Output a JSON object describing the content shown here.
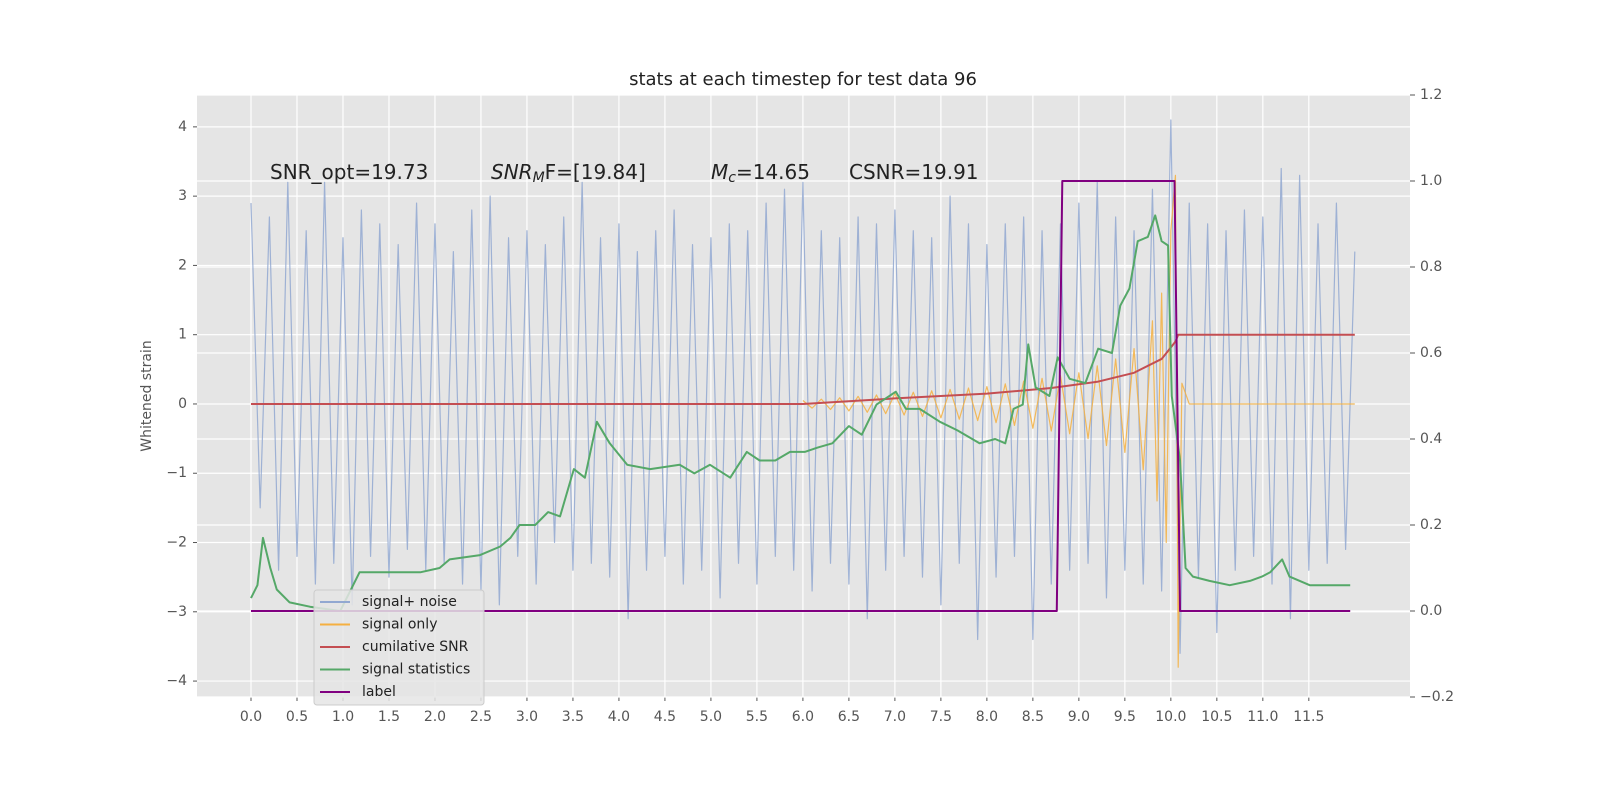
{
  "chart_data": {
    "type": "line",
    "title": "stats at each timestep for test data 96",
    "ylabel": "Whitened strain",
    "xlim": [
      -0.587,
      12.6
    ],
    "ylim": [
      -4.23,
      4.46
    ],
    "y2lim": [
      -0.2,
      1.2
    ],
    "grid": true,
    "legend": "lower left",
    "xticks": [
      {
        "value": 0,
        "label": "0.0"
      },
      0.5,
      {
        "value": 1,
        "label": "1.0"
      },
      1.5,
      {
        "value": 2,
        "label": "2.0"
      },
      2.5,
      {
        "value": 3,
        "label": "3.0"
      },
      3.5,
      {
        "value": 4,
        "label": "4.0"
      },
      4.5,
      {
        "value": 5,
        "label": "5.0"
      },
      5.5,
      {
        "value": 6,
        "label": "6.0"
      },
      6.5,
      {
        "value": 7,
        "label": "7.0"
      },
      7.5,
      {
        "value": 8,
        "label": "8.0"
      },
      8.5,
      {
        "value": 9,
        "label": "9.0"
      },
      9.5,
      {
        "value": 10,
        "label": "10.0"
      },
      10.5,
      {
        "value": 11,
        "label": "11.0"
      },
      11.5
    ],
    "yticks": [
      {
        "value": -4,
        "label": "−4"
      },
      {
        "value": -3,
        "label": "−3"
      },
      {
        "value": -2,
        "label": "−2"
      },
      {
        "value": -1,
        "label": "−1"
      },
      0,
      1,
      2,
      3,
      4
    ],
    "y2ticks": [
      {
        "value": -0.2,
        "label": "−0.2"
      },
      {
        "value": 0,
        "label": "0.0"
      },
      0.2,
      0.4,
      0.6,
      0.8,
      {
        "value": 1,
        "label": "1.0"
      },
      1.2
    ],
    "annotations": [
      {
        "text": "SNR_opt=19.73"
      },
      {
        "text": "SNR",
        "sub": "M",
        "rest": "F=[19.84]"
      },
      {
        "text": "M",
        "sub": "c",
        "rest": "=14.65"
      },
      {
        "text": "CSNR=19.91"
      }
    ],
    "series": [
      {
        "name": "signal+ noise",
        "color": "#92a8d1",
        "x": [
          0.0,
          0.1,
          0.2,
          0.3,
          0.4,
          0.5,
          0.6,
          0.7,
          0.8,
          0.9,
          1.0,
          1.1,
          1.2,
          1.3,
          1.4,
          1.5,
          1.6,
          1.7,
          1.8,
          1.9,
          2.0,
          2.1,
          2.2,
          2.3,
          2.4,
          2.5,
          2.6,
          2.7,
          2.8,
          2.9,
          3.0,
          3.1,
          3.2,
          3.3,
          3.4,
          3.5,
          3.6,
          3.7,
          3.8,
          3.9,
          4.0,
          4.1,
          4.2,
          4.3,
          4.4,
          4.5,
          4.6,
          4.7,
          4.8,
          4.9,
          5.0,
          5.1,
          5.2,
          5.3,
          5.4,
          5.5,
          5.6,
          5.7,
          5.8,
          5.9,
          6.0,
          6.1,
          6.2,
          6.3,
          6.4,
          6.5,
          6.6,
          6.7,
          6.8,
          6.9,
          7.0,
          7.1,
          7.2,
          7.3,
          7.4,
          7.5,
          7.6,
          7.7,
          7.8,
          7.9,
          8.0,
          8.1,
          8.2,
          8.3,
          8.4,
          8.5,
          8.6,
          8.7,
          8.8,
          8.9,
          9.0,
          9.1,
          9.2,
          9.3,
          9.4,
          9.5,
          9.6,
          9.7,
          9.8,
          9.9,
          10.0,
          10.1,
          10.2,
          10.3,
          10.4,
          10.5,
          10.6,
          10.7,
          10.8,
          10.9,
          11.0,
          11.1,
          11.2,
          11.3,
          11.4,
          11.5,
          11.6,
          11.7,
          11.8,
          11.9,
          12.0
        ],
        "values": [
          2.9,
          -1.5,
          2.7,
          -2.4,
          3.2,
          -2.2,
          2.5,
          -2.6,
          3.2,
          -2.3,
          2.4,
          -2.9,
          2.8,
          -2.2,
          2.6,
          -2.5,
          2.3,
          -2.1,
          2.9,
          -2.4,
          2.6,
          -2.3,
          2.2,
          -2.6,
          2.8,
          -2.7,
          3.0,
          -2.9,
          2.4,
          -2.2,
          2.5,
          -2.6,
          2.3,
          -2.0,
          2.7,
          -2.4,
          3.2,
          -2.3,
          2.4,
          -2.5,
          2.6,
          -3.1,
          2.2,
          -2.4,
          2.5,
          -2.2,
          2.8,
          -2.6,
          2.3,
          -2.4,
          2.4,
          -2.8,
          2.6,
          -2.3,
          2.5,
          -2.6,
          2.9,
          -2.2,
          3.1,
          -2.4,
          3.2,
          -2.7,
          2.5,
          -2.3,
          2.4,
          -2.6,
          2.7,
          -3.1,
          2.6,
          -2.4,
          2.8,
          -2.2,
          2.5,
          -2.5,
          2.4,
          -2.9,
          3.0,
          -2.3,
          2.6,
          -3.4,
          2.3,
          -2.5,
          2.6,
          -2.2,
          2.7,
          -3.4,
          2.5,
          -2.6,
          2.6,
          -2.4,
          2.9,
          -2.3,
          3.2,
          -2.8,
          2.7,
          -2.4,
          2.5,
          -2.6,
          3.1,
          -2.7,
          4.1,
          -3.6,
          2.9,
          -2.5,
          2.6,
          -3.3,
          2.5,
          -2.4,
          2.8,
          -2.2,
          2.7,
          -2.6,
          3.4,
          -3.1,
          3.3,
          -2.4,
          2.6,
          -2.3,
          2.9,
          -2.1,
          2.2
        ]
      },
      {
        "name": "signal only",
        "color": "#f5b041",
        "x": [
          6.0,
          6.1,
          6.2,
          6.3,
          6.4,
          6.5,
          6.6,
          6.7,
          6.8,
          6.9,
          7.0,
          7.1,
          7.2,
          7.3,
          7.4,
          7.5,
          7.6,
          7.7,
          7.8,
          7.9,
          8.0,
          8.1,
          8.2,
          8.3,
          8.4,
          8.5,
          8.6,
          8.7,
          8.8,
          8.9,
          9.0,
          9.1,
          9.2,
          9.3,
          9.4,
          9.5,
          9.6,
          9.7,
          9.8,
          9.85,
          9.9,
          9.95,
          10.0,
          10.05,
          10.08,
          10.12,
          10.2,
          12.0
        ],
        "values": [
          0.05,
          -0.06,
          0.07,
          -0.08,
          0.09,
          -0.1,
          0.11,
          -0.12,
          0.13,
          -0.14,
          0.15,
          -0.16,
          0.17,
          -0.18,
          0.19,
          -0.2,
          0.21,
          -0.22,
          0.23,
          -0.24,
          0.25,
          -0.27,
          0.29,
          -0.31,
          0.33,
          -0.35,
          0.37,
          -0.39,
          0.41,
          -0.43,
          0.45,
          -0.5,
          0.55,
          -0.6,
          0.65,
          -0.7,
          0.8,
          -0.95,
          1.2,
          -1.4,
          1.6,
          -2.0,
          2.5,
          3.3,
          -3.8,
          0.3,
          0,
          0
        ]
      },
      {
        "name": "cumilative SNR",
        "color": "#c44e52",
        "x": [
          0.0,
          6.0,
          7.0,
          8.0,
          8.7,
          9.2,
          9.6,
          9.9,
          10.05,
          10.08,
          12.0
        ],
        "values": [
          0,
          0,
          0.08,
          0.15,
          0.23,
          0.32,
          0.45,
          0.65,
          0.9,
          1.0,
          1.0
        ]
      },
      {
        "name": "signal statistics",
        "color": "#55a868",
        "axis": "y2",
        "x": [
          0.0,
          0.07,
          0.13,
          0.21,
          0.28,
          0.42,
          0.64,
          0.97,
          1.18,
          1.4,
          1.84,
          2.05,
          2.16,
          2.49,
          2.71,
          2.82,
          2.92,
          3.09,
          3.23,
          3.36,
          3.51,
          3.63,
          3.76,
          3.9,
          4.09,
          4.34,
          4.66,
          4.82,
          4.99,
          5.21,
          5.39,
          5.53,
          5.7,
          5.86,
          6.02,
          6.16,
          6.32,
          6.5,
          6.64,
          6.8,
          7.01,
          7.12,
          7.27,
          7.49,
          7.68,
          7.92,
          8.09,
          8.2,
          8.29,
          8.39,
          8.45,
          8.53,
          8.68,
          8.77,
          8.9,
          9.07,
          9.21,
          9.36,
          9.45,
          9.55,
          9.64,
          9.75,
          9.83,
          9.9,
          9.97,
          10.01,
          10.1,
          10.16,
          10.24,
          10.42,
          10.64,
          10.86,
          10.99,
          11.08,
          11.21,
          11.29,
          11.51,
          11.95
        ],
        "values": [
          0.03,
          0.06,
          0.17,
          0.1,
          0.05,
          0.02,
          0.01,
          0.0,
          0.09,
          0.09,
          0.09,
          0.1,
          0.12,
          0.13,
          0.15,
          0.17,
          0.2,
          0.2,
          0.23,
          0.22,
          0.33,
          0.31,
          0.44,
          0.39,
          0.34,
          0.33,
          0.34,
          0.32,
          0.34,
          0.31,
          0.37,
          0.35,
          0.35,
          0.37,
          0.37,
          0.38,
          0.39,
          0.43,
          0.41,
          0.48,
          0.51,
          0.47,
          0.47,
          0.44,
          0.42,
          0.39,
          0.4,
          0.39,
          0.47,
          0.48,
          0.62,
          0.52,
          0.5,
          0.59,
          0.54,
          0.53,
          0.61,
          0.6,
          0.71,
          0.75,
          0.86,
          0.87,
          0.92,
          0.86,
          0.85,
          0.5,
          0.35,
          0.1,
          0.08,
          0.07,
          0.06,
          0.07,
          0.08,
          0.09,
          0.12,
          0.08,
          0.06,
          0.06
        ]
      },
      {
        "name": "label",
        "color": "#800080",
        "axis": "y2",
        "x": [
          0.0,
          8.76,
          8.82,
          10.04,
          10.1,
          11.95
        ],
        "values": [
          0,
          0,
          1,
          1,
          0,
          0
        ]
      }
    ]
  }
}
